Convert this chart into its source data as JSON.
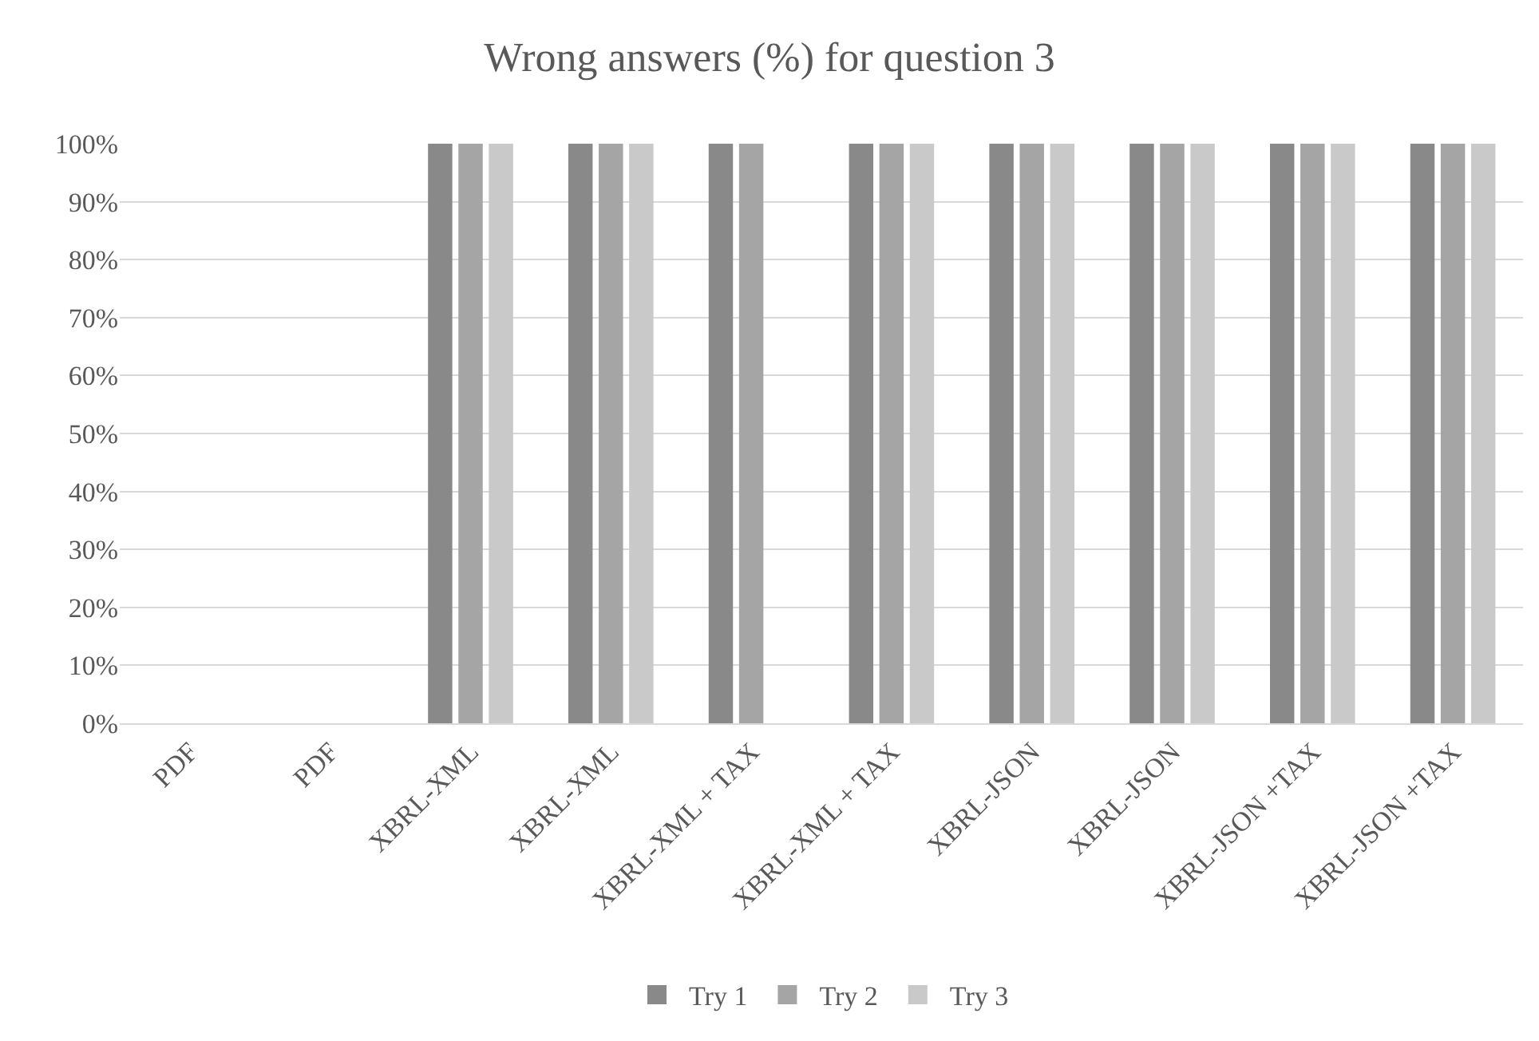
{
  "chart_data": {
    "type": "bar",
    "title": "Wrong answers (%) for question 3",
    "categories": [
      "PDF",
      "PDF",
      "XBRL-XML",
      "XBRL-XML",
      "XBRL-XML + TAX",
      "XBRL-XML + TAX",
      "XBRL-JSON",
      "XBRL-JSON",
      "XBRL-JSON +TAX",
      "XBRL-JSON +TAX"
    ],
    "series": [
      {
        "name": "Try 1",
        "color": "#898989",
        "values": [
          0,
          0,
          100,
          100,
          100,
          100,
          100,
          100,
          100,
          100
        ]
      },
      {
        "name": "Try 2",
        "color": "#a5a5a5",
        "values": [
          0,
          0,
          100,
          100,
          100,
          100,
          100,
          100,
          100,
          100
        ]
      },
      {
        "name": "Try 3",
        "color": "#c9c9c9",
        "values": [
          0,
          0,
          100,
          100,
          0,
          100,
          100,
          100,
          100,
          100
        ]
      }
    ],
    "ylim": [
      0,
      100
    ],
    "yticks": [
      {
        "value": 0,
        "label": "0%"
      },
      {
        "value": 10,
        "label": "10%"
      },
      {
        "value": 20,
        "label": "20%"
      },
      {
        "value": 30,
        "label": "30%"
      },
      {
        "value": 40,
        "label": "40%"
      },
      {
        "value": 50,
        "label": "50%"
      },
      {
        "value": 60,
        "label": "60%"
      },
      {
        "value": 70,
        "label": "70%"
      },
      {
        "value": 80,
        "label": "80%"
      },
      {
        "value": 90,
        "label": "90%"
      },
      {
        "value": 100,
        "label": "100%"
      }
    ],
    "grid": "y",
    "legend": "bottom"
  }
}
